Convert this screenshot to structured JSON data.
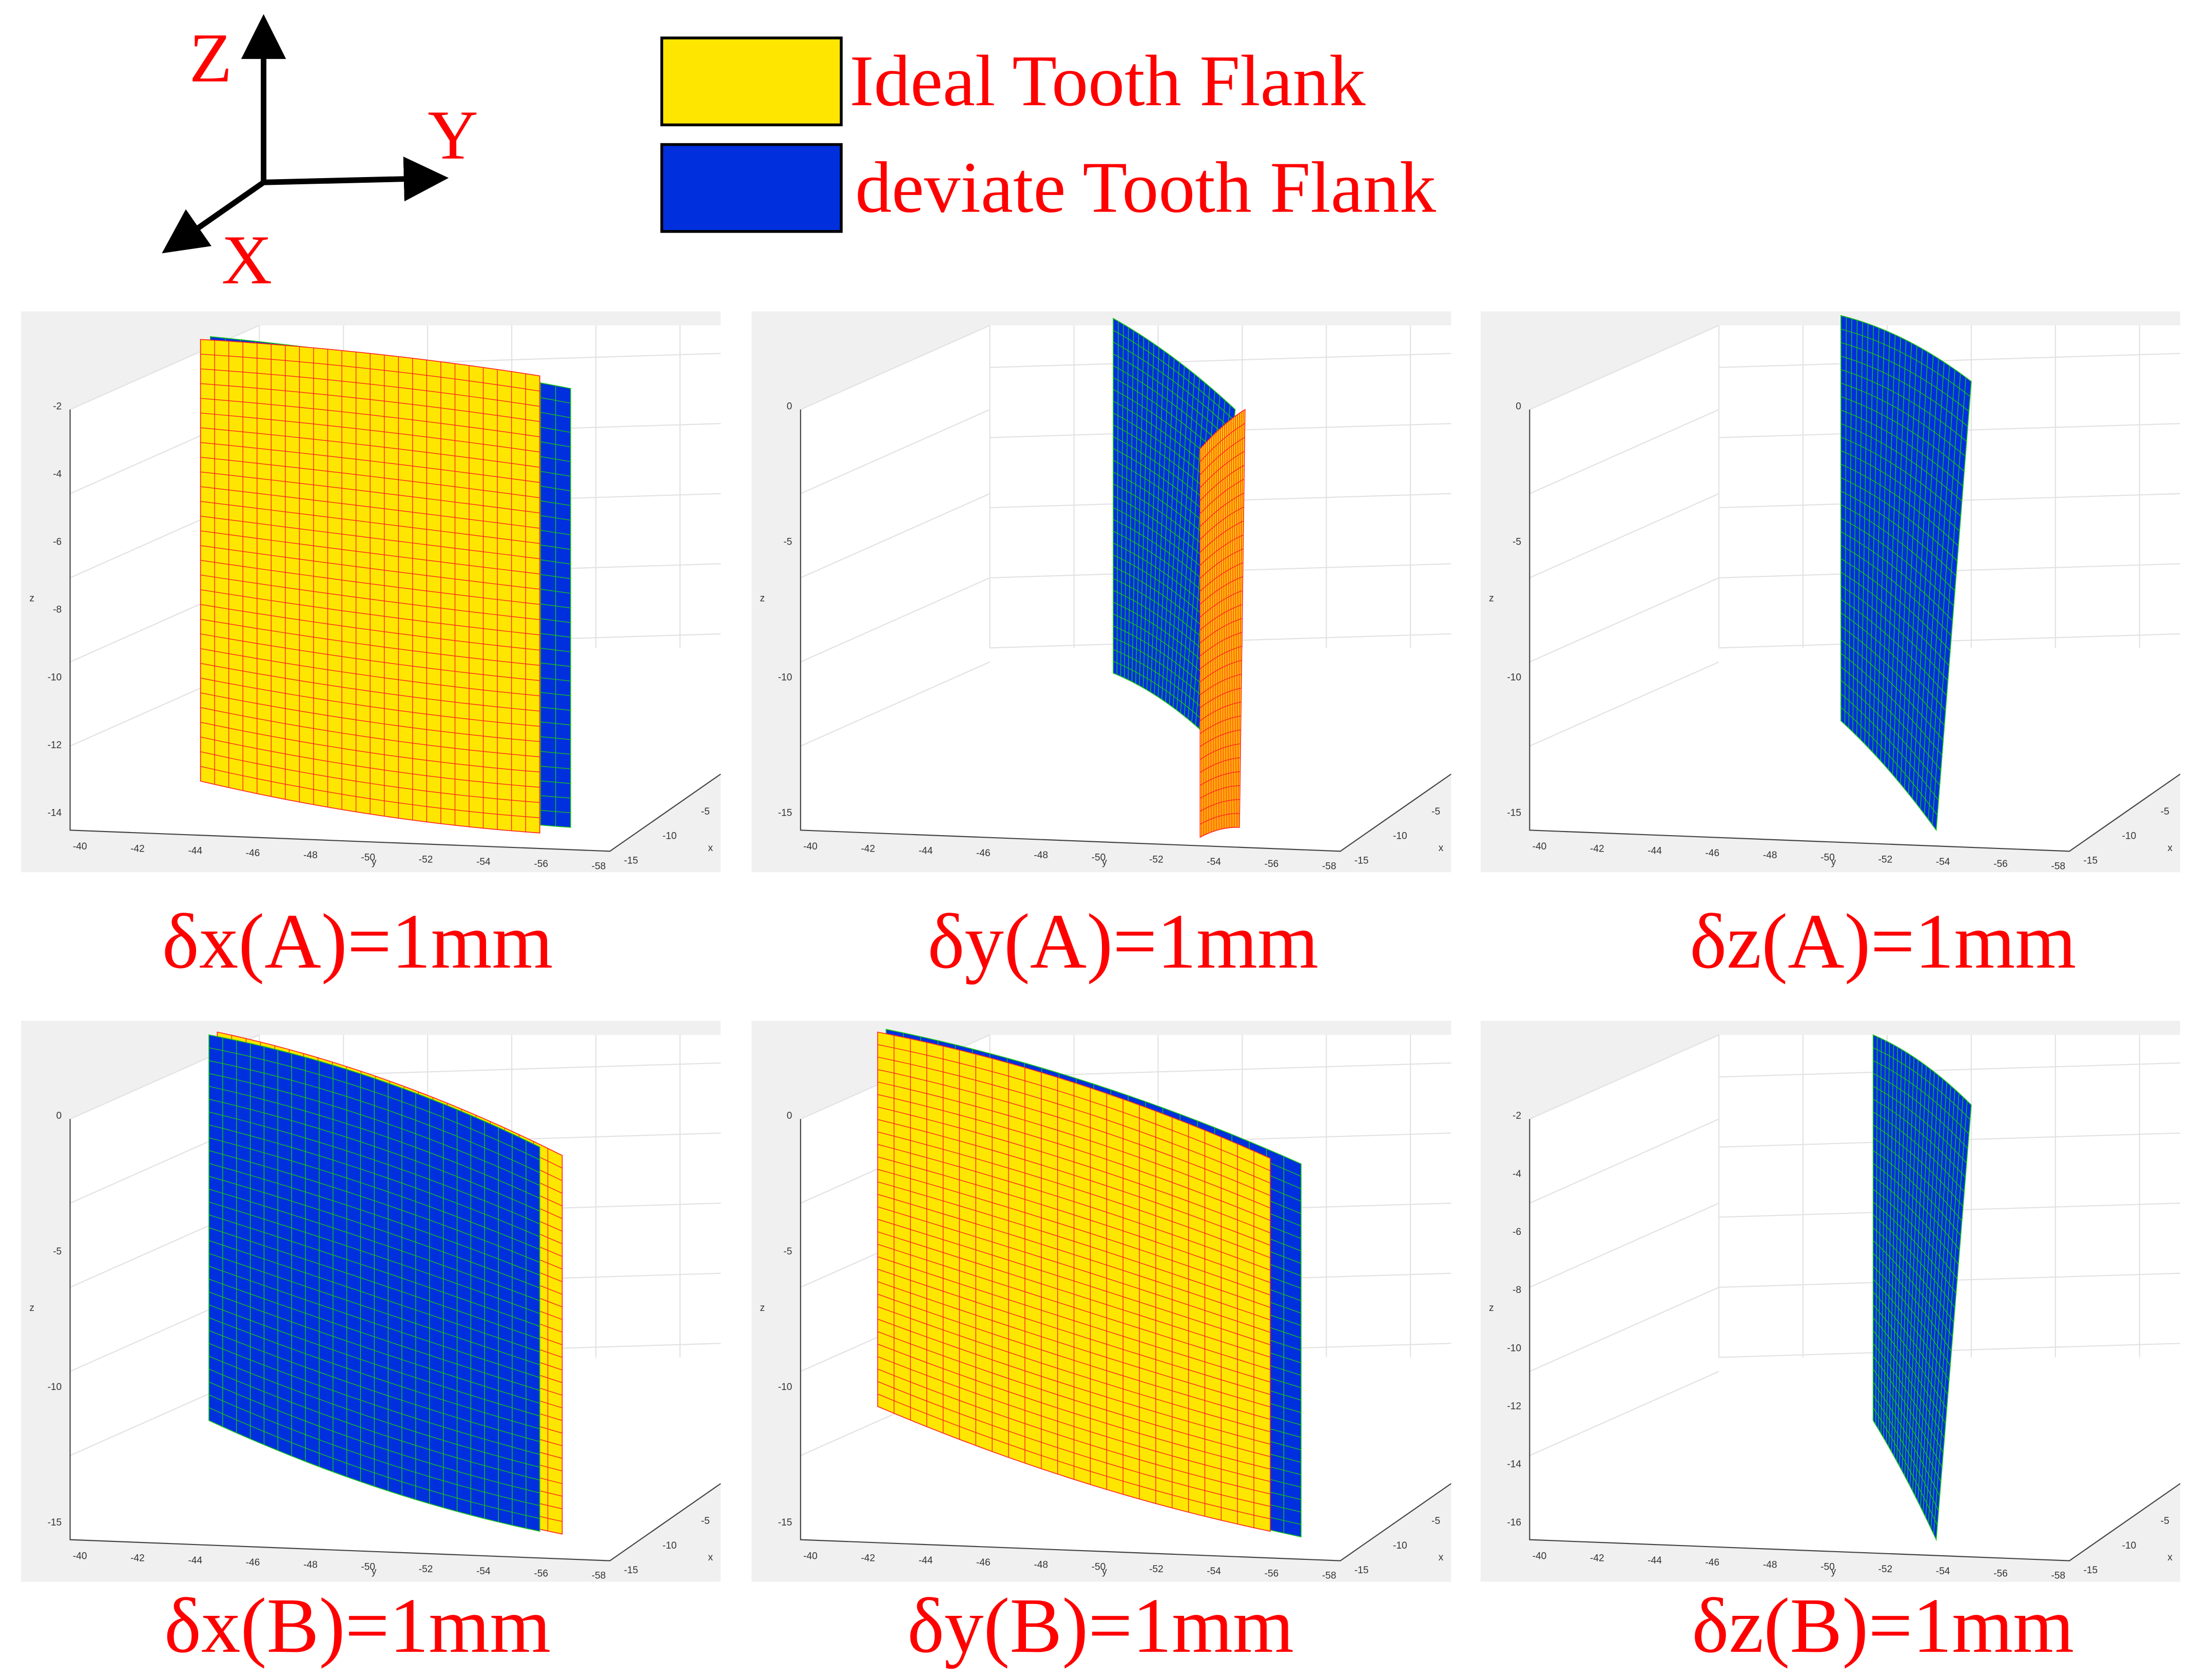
{
  "axes_indicator": {
    "z": "Z",
    "y": "Y",
    "x": "X"
  },
  "legend": [
    {
      "label": "Ideal Tooth Flank",
      "color": "#ffe600"
    },
    {
      "label": "deviate Tooth Flank",
      "color": "#0030dd"
    }
  ],
  "panels": [
    {
      "caption": "δx(A)=1mm",
      "z_label": "z",
      "y_label": "y",
      "x_label": "x",
      "z_ticks": [
        "-2",
        "-4",
        "-6",
        "-8",
        "-10",
        "-12",
        "-14"
      ],
      "y_ticks": [
        "-40",
        "-42",
        "-44",
        "-46",
        "-48",
        "-50",
        "-52",
        "-54",
        "-56",
        "-58"
      ],
      "x_ticks": [
        "-15",
        "-10",
        "-5"
      ]
    },
    {
      "caption": "δy(A)=1mm",
      "z_label": "z",
      "y_label": "y",
      "x_label": "x",
      "z_ticks": [
        "0",
        "-5",
        "-10",
        "-15"
      ],
      "y_ticks": [
        "-40",
        "-42",
        "-44",
        "-46",
        "-48",
        "-50",
        "-52",
        "-54",
        "-56",
        "-58"
      ],
      "x_ticks": [
        "-15",
        "-10",
        "-5"
      ]
    },
    {
      "caption": "δz(A)=1mm",
      "z_label": "z",
      "y_label": "y",
      "x_label": "x",
      "z_ticks": [
        "0",
        "-5",
        "-10",
        "-15"
      ],
      "y_ticks": [
        "-40",
        "-42",
        "-44",
        "-46",
        "-48",
        "-50",
        "-52",
        "-54",
        "-56",
        "-58"
      ],
      "x_ticks": [
        "-15",
        "-10",
        "-5"
      ]
    },
    {
      "caption": "δx(B)=1mm",
      "z_label": "z",
      "y_label": "y",
      "x_label": "x",
      "z_ticks": [
        "0",
        "-5",
        "-10",
        "-15"
      ],
      "y_ticks": [
        "-40",
        "-42",
        "-44",
        "-46",
        "-48",
        "-50",
        "-52",
        "-54",
        "-56",
        "-58"
      ],
      "x_ticks": [
        "-15",
        "-10",
        "-5"
      ]
    },
    {
      "caption": "δy(B)=1mm",
      "z_label": "z",
      "y_label": "y",
      "x_label": "x",
      "z_ticks": [
        "0",
        "-5",
        "-10",
        "-15"
      ],
      "y_ticks": [
        "-40",
        "-42",
        "-44",
        "-46",
        "-48",
        "-50",
        "-52",
        "-54",
        "-56",
        "-58"
      ],
      "x_ticks": [
        "-15",
        "-10",
        "-5"
      ]
    },
    {
      "caption": "δz(B)=1mm",
      "z_label": "z",
      "y_label": "y",
      "x_label": "x",
      "z_ticks": [
        "-2",
        "-4",
        "-6",
        "-8",
        "-10",
        "-12",
        "-14",
        "-16"
      ],
      "y_ticks": [
        "-40",
        "-42",
        "-44",
        "-46",
        "-48",
        "-50",
        "-52",
        "-54",
        "-56",
        "-58"
      ],
      "x_ticks": [
        "-15",
        "-10",
        "-5"
      ]
    }
  ]
}
